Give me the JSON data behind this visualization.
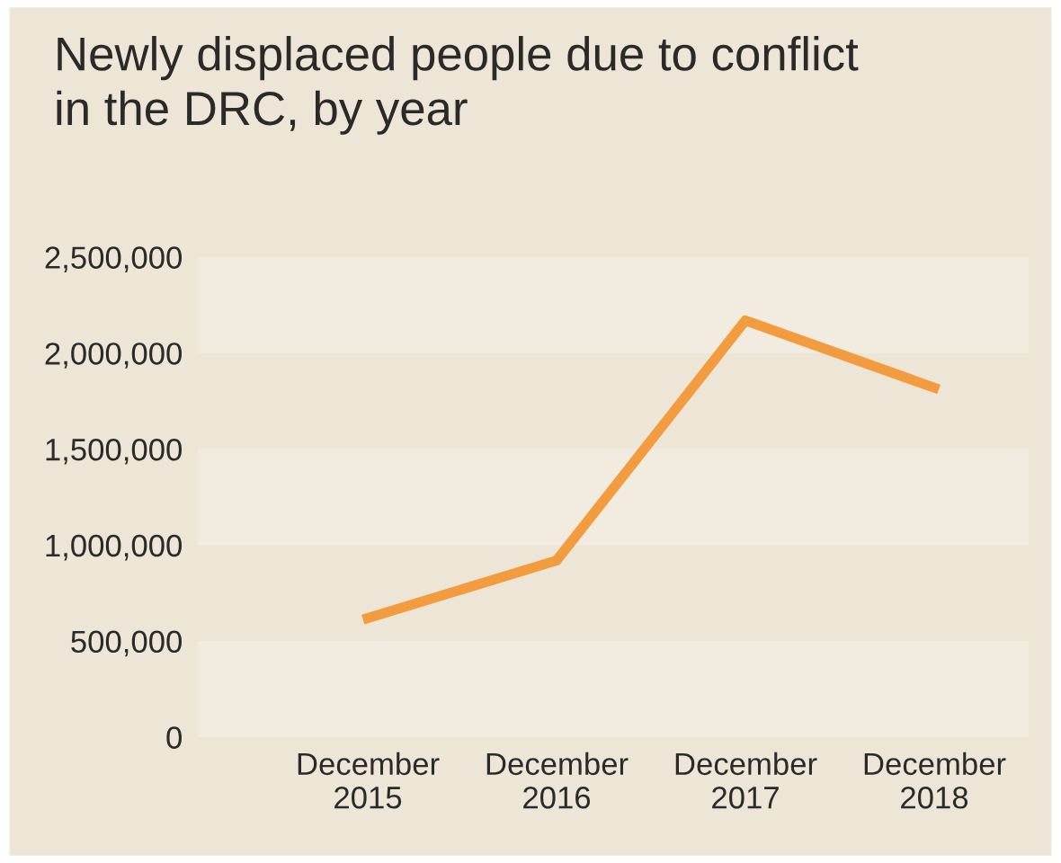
{
  "chart_data": {
    "type": "line",
    "title": "Newly displaced people due to conflict\nin the DRC, by year",
    "categories": [
      "December\n2015",
      "December\n2016",
      "December\n2017",
      "December\n2018"
    ],
    "series": [
      {
        "color": "#f39c3f",
        "values": [
          620000,
          920000,
          2170000,
          1820000
        ]
      }
    ],
    "ylim": [
      0,
      2500000
    ],
    "yticks": [
      {
        "value": 0,
        "label": "0"
      },
      {
        "value": 500000,
        "label": "500,000"
      },
      {
        "value": 1000000,
        "label": "1,000,000"
      },
      {
        "value": 1500000,
        "label": "1,500,000"
      },
      {
        "value": 2000000,
        "label": "2,000,000"
      },
      {
        "value": 2500000,
        "label": "2,500,000"
      }
    ],
    "bands": [
      {
        "axis": "y",
        "from": 0,
        "to": 500000,
        "color": "#f2ece0"
      },
      {
        "axis": "y",
        "from": 1000000,
        "to": 1500000,
        "color": "#f2ece0"
      },
      {
        "axis": "y",
        "from": 2000000,
        "to": 2500000,
        "color": "#f2ece0"
      }
    ],
    "grid": false,
    "legend": false,
    "marker": "none",
    "line_style": "solid"
  }
}
